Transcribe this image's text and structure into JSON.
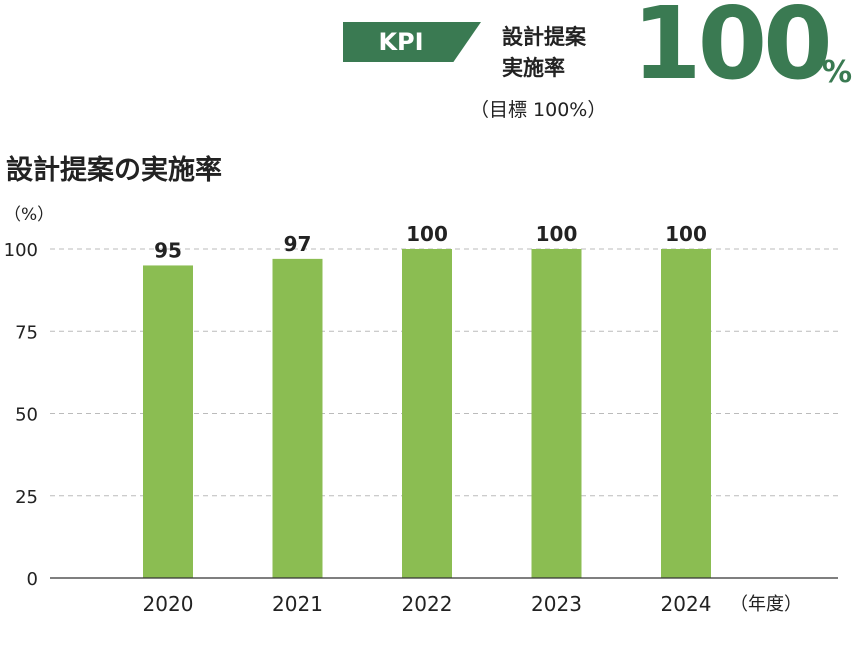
{
  "kpi": {
    "badge": "KPI",
    "label_line1": "設計提案",
    "label_line2": "実施率",
    "target": "（目標 100%）",
    "value": "100",
    "unit": "%"
  },
  "colors": {
    "accent": "#3a7a52",
    "bar": "#8bbd52",
    "grid": "#bbbbbb"
  },
  "chart_data": {
    "type": "bar",
    "title": "設計提案の実施率",
    "ylabel": "（%）",
    "xlabel": "（年度）",
    "categories": [
      "2020",
      "2021",
      "2022",
      "2023",
      "2024"
    ],
    "values": [
      95,
      97,
      100,
      100,
      100
    ],
    "data_labels": [
      "95",
      "97",
      "100",
      "100",
      "100"
    ],
    "ylim": [
      0,
      100
    ],
    "yticks": [
      0,
      25,
      50,
      75,
      100
    ],
    "grid": "dashed horizontal",
    "legend": "none"
  }
}
